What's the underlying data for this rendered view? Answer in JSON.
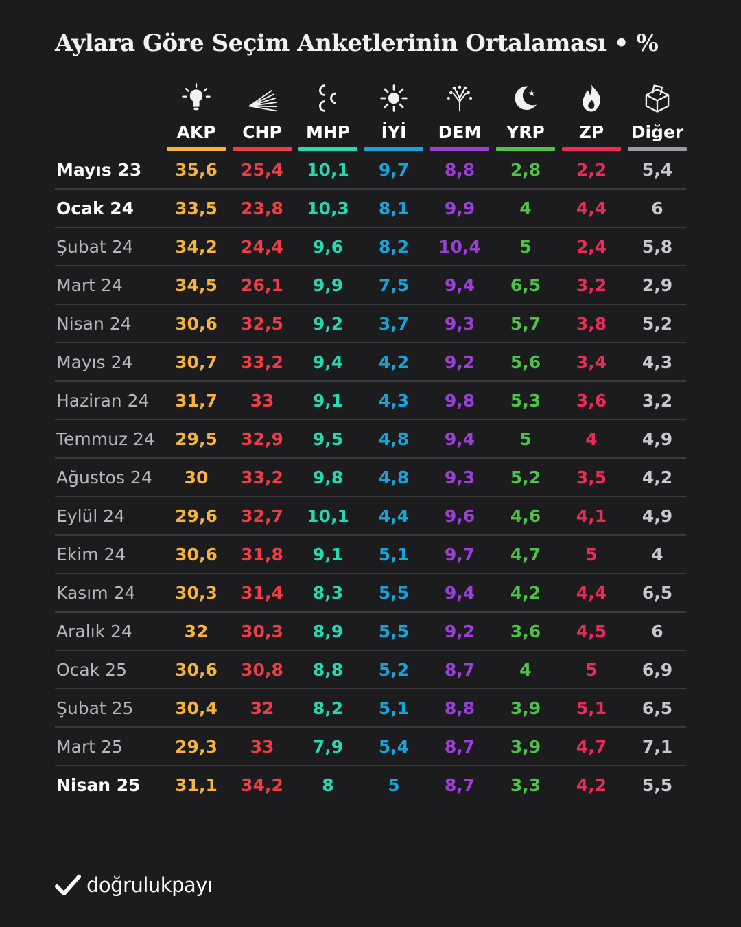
{
  "title": "Aylara Göre Seçim Anketlerinin Ortalaması • %",
  "brand": "doğrulukpayı",
  "chart_data": {
    "type": "table",
    "title": "Aylara Göre Seçim Anketlerinin Ortalaması • %",
    "columns": [
      {
        "name": "AKP",
        "color": "#f5b340",
        "icon": "lightbulb-icon"
      },
      {
        "name": "CHP",
        "color": "#ef3d45",
        "icon": "six-arrows-icon"
      },
      {
        "name": "MHP",
        "color": "#26d9b0",
        "icon": "three-crescents-icon"
      },
      {
        "name": "İYİ",
        "color": "#1aa3d9",
        "icon": "sun-icon"
      },
      {
        "name": "DEM",
        "color": "#9b3fd6",
        "icon": "tree-icon"
      },
      {
        "name": "YRP",
        "color": "#4fc24a",
        "icon": "crescent-star-icon"
      },
      {
        "name": "ZP",
        "color": "#ea2d55",
        "icon": "flame-icon"
      },
      {
        "name": "Diğer",
        "color": "#9a9a9e",
        "icon": "ballot-box-icon"
      }
    ],
    "rows": [
      {
        "label": "Mayıs 23",
        "bold": true,
        "values": [
          "35,6",
          "25,4",
          "10,1",
          "9,7",
          "8,8",
          "2,8",
          "2,2",
          "5,4"
        ]
      },
      {
        "label": "Ocak 24",
        "bold": true,
        "values": [
          "33,5",
          "23,8",
          "10,3",
          "8,1",
          "9,9",
          "4",
          "4,4",
          "6"
        ]
      },
      {
        "label": "Şubat 24",
        "bold": false,
        "values": [
          "34,2",
          "24,4",
          "9,6",
          "8,2",
          "10,4",
          "5",
          "2,4",
          "5,8"
        ]
      },
      {
        "label": "Mart 24",
        "bold": false,
        "values": [
          "34,5",
          "26,1",
          "9,9",
          "7,5",
          "9,4",
          "6,5",
          "3,2",
          "2,9"
        ]
      },
      {
        "label": "Nisan 24",
        "bold": false,
        "values": [
          "30,6",
          "32,5",
          "9,2",
          "3,7",
          "9,3",
          "5,7",
          "3,8",
          "5,2"
        ]
      },
      {
        "label": "Mayıs 24",
        "bold": false,
        "values": [
          "30,7",
          "33,2",
          "9,4",
          "4,2",
          "9,2",
          "5,6",
          "3,4",
          "4,3"
        ]
      },
      {
        "label": "Haziran 24",
        "bold": false,
        "values": [
          "31,7",
          "33",
          "9,1",
          "4,3",
          "9,8",
          "5,3",
          "3,6",
          "3,2"
        ]
      },
      {
        "label": "Temmuz 24",
        "bold": false,
        "values": [
          "29,5",
          "32,9",
          "9,5",
          "4,8",
          "9,4",
          "5",
          "4",
          "4,9"
        ]
      },
      {
        "label": "Ağustos 24",
        "bold": false,
        "values": [
          "30",
          "33,2",
          "9,8",
          "4,8",
          "9,3",
          "5,2",
          "3,5",
          "4,2"
        ]
      },
      {
        "label": "Eylül 24",
        "bold": false,
        "values": [
          "29,6",
          "32,7",
          "10,1",
          "4,4",
          "9,6",
          "4,6",
          "4,1",
          "4,9"
        ]
      },
      {
        "label": "Ekim 24",
        "bold": false,
        "values": [
          "30,6",
          "31,8",
          "9,1",
          "5,1",
          "9,7",
          "4,7",
          "5",
          "4"
        ]
      },
      {
        "label": "Kasım 24",
        "bold": false,
        "values": [
          "30,3",
          "31,4",
          "8,3",
          "5,5",
          "9,4",
          "4,2",
          "4,4",
          "6,5"
        ]
      },
      {
        "label": "Aralık 24",
        "bold": false,
        "values": [
          "32",
          "30,3",
          "8,9",
          "5,5",
          "9,2",
          "3,6",
          "4,5",
          "6"
        ]
      },
      {
        "label": "Ocak 25",
        "bold": false,
        "values": [
          "30,6",
          "30,8",
          "8,8",
          "5,2",
          "8,7",
          "4",
          "5",
          "6,9"
        ]
      },
      {
        "label": "Şubat 25",
        "bold": false,
        "values": [
          "30,4",
          "32",
          "8,2",
          "5,1",
          "8,8",
          "3,9",
          "5,1",
          "6,5"
        ]
      },
      {
        "label": "Mart 25",
        "bold": false,
        "values": [
          "29,3",
          "33",
          "7,9",
          "5,4",
          "8,7",
          "3,9",
          "4,7",
          "7,1"
        ]
      },
      {
        "label": "Nisan 25",
        "bold": true,
        "values": [
          "31,1",
          "34,2",
          "8",
          "5",
          "8,7",
          "3,3",
          "4,2",
          "5,5"
        ]
      }
    ]
  }
}
